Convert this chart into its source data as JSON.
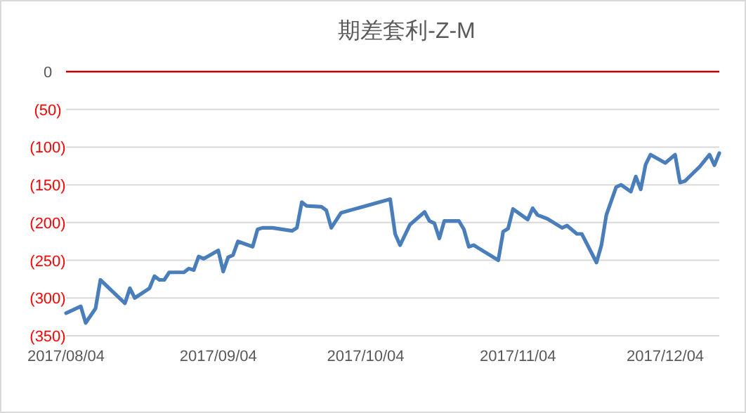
{
  "chart_data": {
    "type": "line",
    "title": "期差套利-Z-M",
    "x": [
      "2017-08-04",
      "2017-08-07",
      "2017-08-08",
      "2017-08-10",
      "2017-08-11",
      "2017-08-16",
      "2017-08-17",
      "2017-08-18",
      "2017-08-21",
      "2017-08-22",
      "2017-08-23",
      "2017-08-24",
      "2017-08-25",
      "2017-08-28",
      "2017-08-29",
      "2017-08-30",
      "2017-08-31",
      "2017-09-01",
      "2017-09-04",
      "2017-09-05",
      "2017-09-06",
      "2017-09-07",
      "2017-09-08",
      "2017-09-11",
      "2017-09-12",
      "2017-09-13",
      "2017-09-15",
      "2017-09-19",
      "2017-09-20",
      "2017-09-21",
      "2017-09-22",
      "2017-09-25",
      "2017-09-26",
      "2017-09-27",
      "2017-09-28",
      "2017-09-29",
      "2017-10-09",
      "2017-10-10",
      "2017-10-11",
      "2017-10-13",
      "2017-10-16",
      "2017-10-17",
      "2017-10-18",
      "2017-10-19",
      "2017-10-20",
      "2017-10-23",
      "2017-10-24",
      "2017-10-25",
      "2017-10-26",
      "2017-10-27",
      "2017-10-31",
      "2017-11-01",
      "2017-11-02",
      "2017-11-03",
      "2017-11-06",
      "2017-11-07",
      "2017-11-08",
      "2017-11-10",
      "2017-11-13",
      "2017-11-14",
      "2017-11-16",
      "2017-11-17",
      "2017-11-20",
      "2017-11-21",
      "2017-11-22",
      "2017-11-24",
      "2017-11-25",
      "2017-11-27",
      "2017-11-28",
      "2017-11-29",
      "2017-11-30",
      "2017-12-01",
      "2017-12-04",
      "2017-12-06",
      "2017-12-07",
      "2017-12-08",
      "2017-12-11",
      "2017-12-13",
      "2017-12-14",
      "2017-12-15"
    ],
    "series": [
      {
        "color": "#4a7ebb",
        "values": [
          -320,
          -311,
          -333,
          -314,
          -276,
          -307,
          -287,
          -300,
          -287,
          -271,
          -276,
          -276,
          -266,
          -266,
          -261,
          -263,
          -245,
          -248,
          -237,
          -265,
          -246,
          -243,
          -225,
          -232,
          -209,
          -207,
          -207,
          -211,
          -207,
          -173,
          -178,
          -179,
          -184,
          -207,
          -197,
          -187,
          -169,
          -215,
          -230,
          -203,
          -186,
          -198,
          -201,
          -221,
          -198,
          -198,
          -209,
          -232,
          -230,
          -234,
          -250,
          -212,
          -208,
          -182,
          -196,
          -181,
          -190,
          -195,
          -207,
          -204,
          -215,
          -215,
          -253,
          -230,
          -190,
          -153,
          -150,
          -159,
          -139,
          -156,
          -123,
          -110,
          -121,
          -110,
          -147,
          -145,
          -126,
          -110,
          -124,
          -108
        ]
      }
    ],
    "xlim": [
      "2017-08-04",
      "2017-12-15"
    ],
    "xticks": [
      {
        "value": "2017-08-04",
        "label": "2017/08/04"
      },
      {
        "value": "2017-09-04",
        "label": "2017/09/04"
      },
      {
        "value": "2017-10-04",
        "label": "2017/10/04"
      },
      {
        "value": "2017-11-04",
        "label": "2017/11/04"
      },
      {
        "value": "2017-12-04",
        "label": "2017/12/04"
      }
    ],
    "ylim": [
      -350,
      0
    ],
    "yticks": [
      0,
      {
        "value": -50,
        "label": "(50)"
      },
      {
        "value": -100,
        "label": "(100)"
      },
      {
        "value": -150,
        "label": "(150)"
      },
      {
        "value": -200,
        "label": "(200)"
      },
      {
        "value": -250,
        "label": "(250)"
      },
      {
        "value": -300,
        "label": "(300)"
      },
      {
        "value": -350,
        "label": "(350)"
      }
    ],
    "grid": "y",
    "marker": "none",
    "line_style": "solid",
    "ref_lines": [
      {
        "axis": "y",
        "value": 0,
        "color": "#c00000"
      }
    ]
  }
}
